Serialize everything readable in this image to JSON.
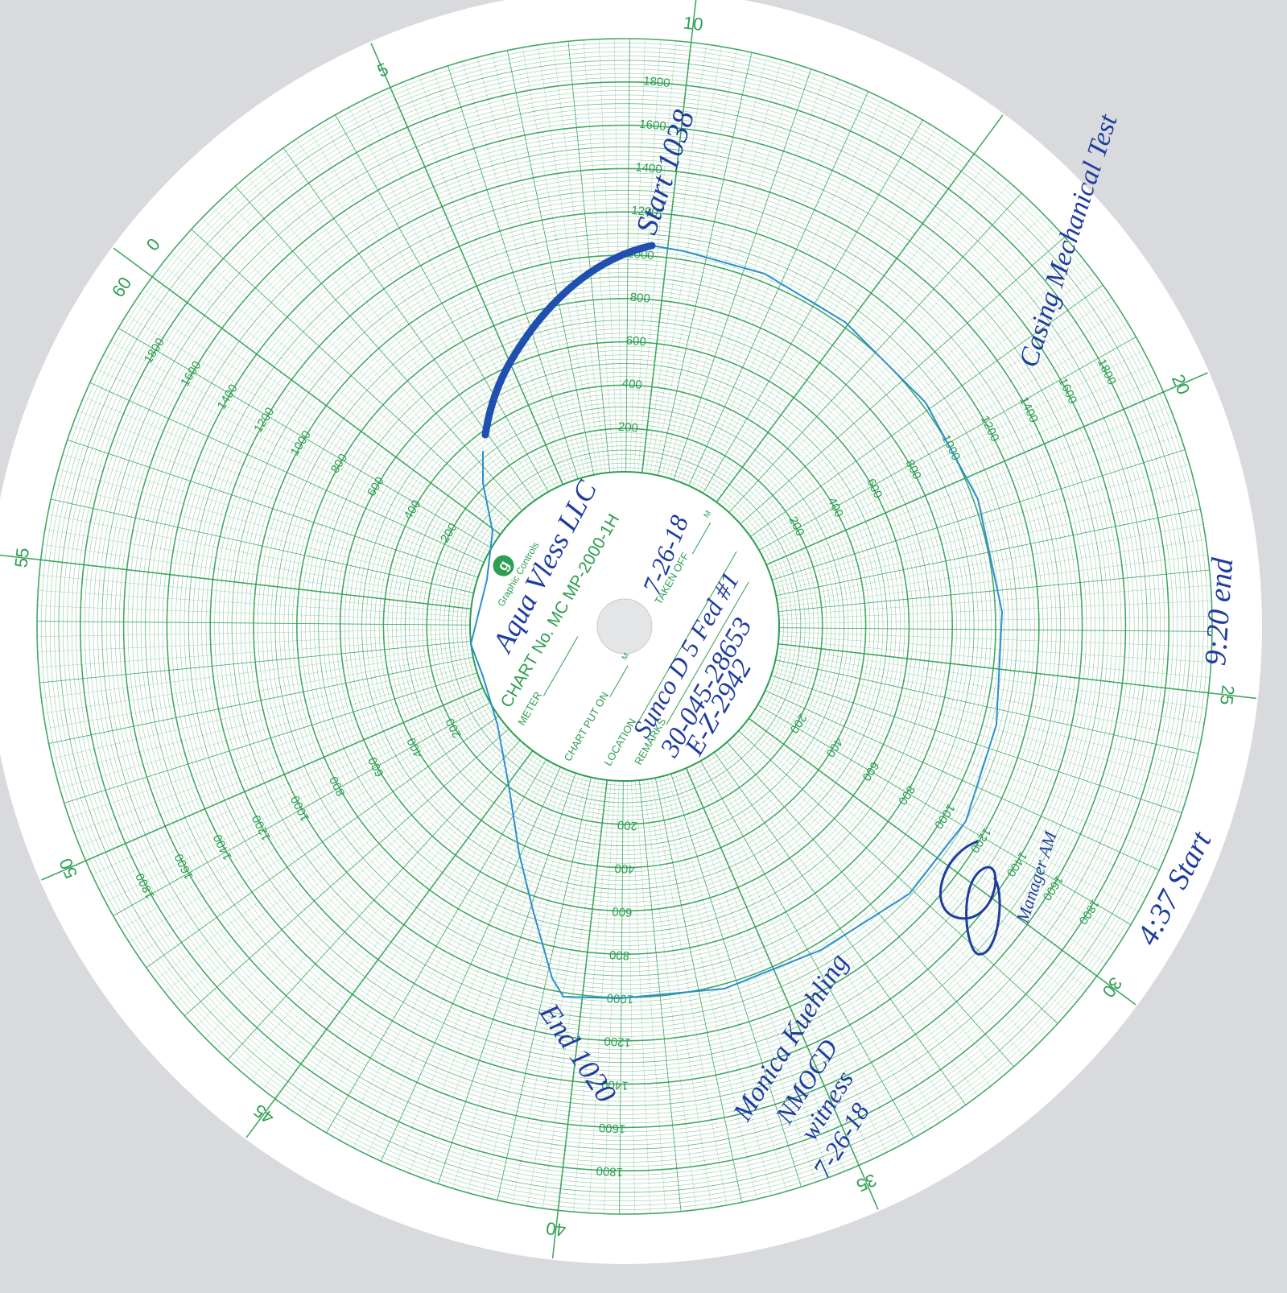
{
  "minute_labels": [
    60,
    0,
    5,
    10,
    20,
    25,
    30,
    35,
    40,
    45,
    50,
    55
  ],
  "scale_labels": [
    200,
    400,
    600,
    800,
    1000,
    1200,
    1400,
    1600,
    1800
  ],
  "center_label": {
    "logo": "g",
    "brand": "Graphic Controls",
    "chart_no": "CHART No. MC MP-2000-1H",
    "meter": "METER",
    "put_on": "CHART PUT ON",
    "put_on_unit": "M",
    "taken_off": "TAKEN OFF",
    "taken_off_unit": "M",
    "location": "LOCATION",
    "remarks": "REMARKS"
  },
  "handwriting": {
    "start": "Start 1038",
    "company": "Aqua Vless LLC",
    "date": "7-26-18",
    "well": "Sunco D 5 Fed #1",
    "api": "30-045-28653",
    "unit": "E-Z-2942",
    "test": "Casing Mechanical Test",
    "end_time": "9:20 end",
    "start_time": "4:37 Start",
    "manager": "Manager AM",
    "end": "End 1020",
    "witness_name": "Monica Kuehling",
    "witness_org": "NMOCD",
    "witness_role": "witness",
    "witness_date": "7-26-18"
  }
}
